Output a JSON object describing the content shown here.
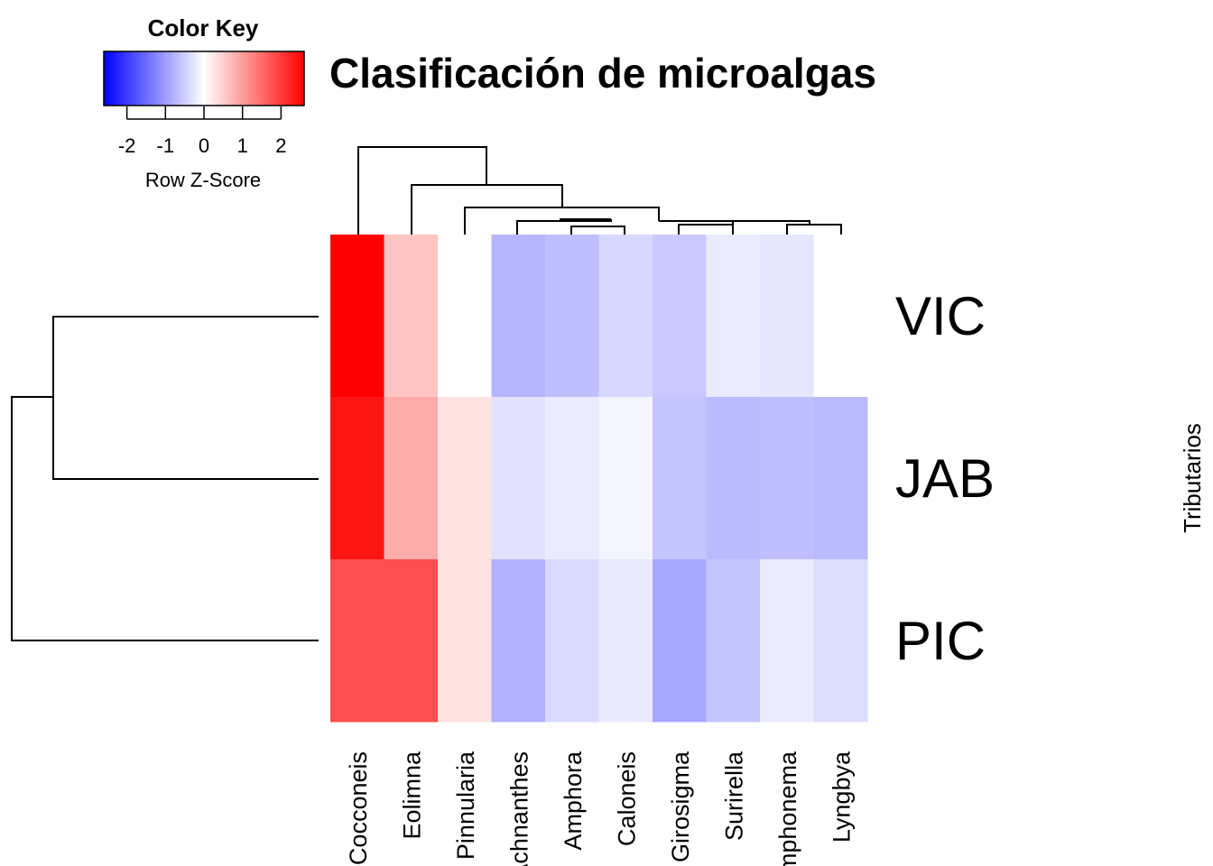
{
  "chart_data": {
    "type": "heatmap",
    "title": "Clasificación de microalgas",
    "rows": [
      "VIC",
      "JAB",
      "PIC"
    ],
    "columns": [
      "Cocconeis",
      "Eolimna",
      "Pinnularia",
      "Achnanthes",
      "Amphora",
      "Caloneis",
      "Girosigma",
      "Surirella",
      "Gomphonema",
      "Lyngbya"
    ],
    "row_axis_label": "Tributarios",
    "values": [
      [
        2.6,
        0.6,
        0.0,
        -0.75,
        -0.65,
        -0.4,
        -0.55,
        -0.2,
        -0.25,
        null
      ],
      [
        2.4,
        0.85,
        0.3,
        -0.3,
        -0.2,
        -0.1,
        -0.6,
        -0.7,
        -0.65,
        -0.7
      ],
      [
        1.8,
        1.8,
        0.3,
        -0.8,
        -0.38,
        -0.22,
        -0.9,
        -0.6,
        -0.2,
        -0.35
      ]
    ],
    "color_key": {
      "title": "Color Key",
      "label": "Row Z-Score",
      "ticks": [
        "-2",
        "-1",
        "0",
        "1",
        "2"
      ],
      "range": [
        -2.6,
        2.6
      ],
      "low_color": "#0000ff",
      "mid_color": "#ffffff",
      "high_color": "#ff0000"
    },
    "row_dendrogram": true,
    "column_dendrogram": true
  }
}
